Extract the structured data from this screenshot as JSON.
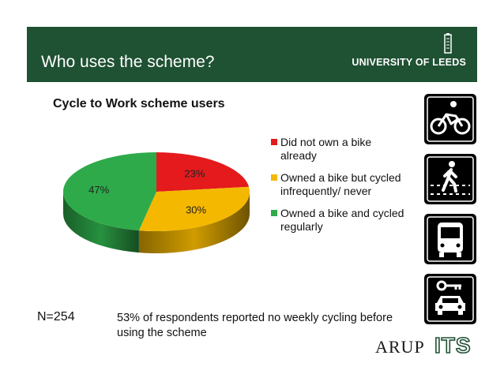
{
  "header": {
    "title": "Who uses the scheme?",
    "university": "UNIVERSITY OF LEEDS",
    "bg_color": "#1f5133"
  },
  "chart_data": {
    "type": "pie",
    "title": "Cycle to Work scheme users",
    "three_d": true,
    "legend_position": "right",
    "slices": [
      {
        "label": "Did not own a bike already",
        "value": 23,
        "value_label": "23%",
        "color": "#e41a1c"
      },
      {
        "label": "Owned a bike but cycled infrequently/ never",
        "value": 30,
        "value_label": "30%",
        "color": "#f5b800"
      },
      {
        "label": "Owned a bike and cycled regularly",
        "value": 47,
        "value_label": "47%",
        "color": "#2eaa4a"
      }
    ]
  },
  "icons": [
    "bicycle-icon",
    "pedestrian-icon",
    "bus-icon",
    "car-key-icon"
  ],
  "sample": {
    "n_label": "N=254"
  },
  "note": "53% of respondents reported no weekly cycling before using the scheme",
  "logos": {
    "arup": "ARUP",
    "its": "ITS"
  }
}
